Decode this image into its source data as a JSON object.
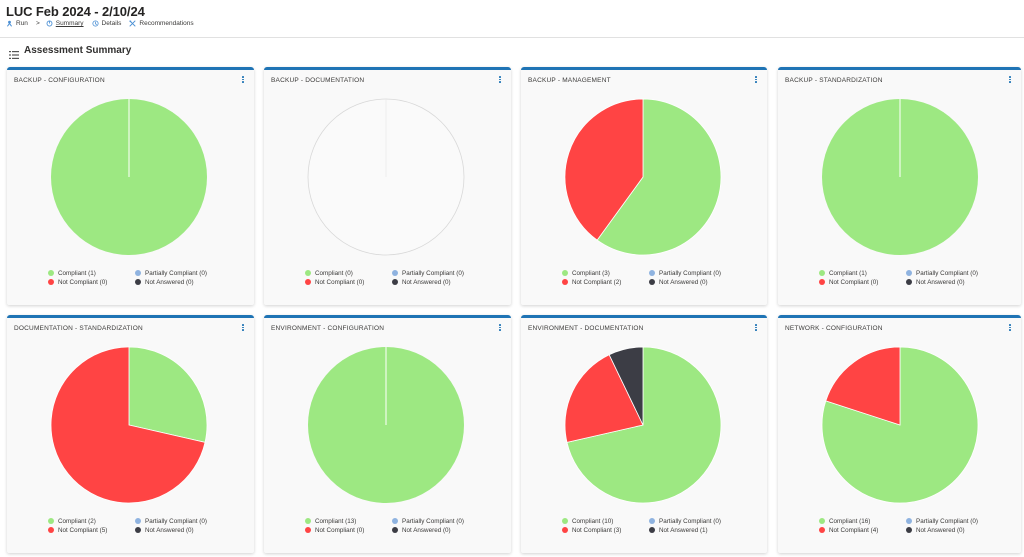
{
  "header": {
    "title": "LUC Feb 2024 - 2/10/24",
    "breadcrumbs": [
      {
        "label": "Run",
        "icon": "run-icon"
      },
      {
        "label": "Summary",
        "icon": "summary-icon",
        "active": true
      },
      {
        "label": "Details",
        "icon": "details-icon"
      },
      {
        "label": "Recommendations",
        "icon": "recommendations-icon"
      }
    ],
    "separator": ">"
  },
  "section": {
    "title": "Assessment Summary",
    "icon": "list-icon"
  },
  "colors": {
    "accent": "#1f74b5",
    "compliant": "#9de882",
    "partially_compliant": "#8fb3e0",
    "not_compliant": "#ff4444",
    "not_answered": "#3c3d45"
  },
  "legend_labels": {
    "compliant": "Compliant",
    "partially": "Partially Compliant",
    "not_compliant": "Not Compliant",
    "not_answered": "Not Answered"
  },
  "cards": [
    {
      "title": "BACKUP - CONFIGURATION",
      "compliant": 1,
      "partially": 0,
      "not_compliant": 0,
      "not_answered": 0,
      "legend": {
        "compliant": "Compliant (1)",
        "partially": "Partially Compliant (0)",
        "not_compliant": "Not Compliant (0)",
        "not_answered": "Not Answered (0)"
      }
    },
    {
      "title": "BACKUP - DOCUMENTATION",
      "compliant": 0,
      "partially": 0,
      "not_compliant": 0,
      "not_answered": 0,
      "legend": {
        "compliant": "Compliant (0)",
        "partially": "Partially Compliant (0)",
        "not_compliant": "Not Compliant (0)",
        "not_answered": "Not Answered (0)"
      }
    },
    {
      "title": "BACKUP - MANAGEMENT",
      "compliant": 3,
      "partially": 0,
      "not_compliant": 2,
      "not_answered": 0,
      "legend": {
        "compliant": "Compliant (3)",
        "partially": "Partially Compliant (0)",
        "not_compliant": "Not Compliant (2)",
        "not_answered": "Not Answered (0)"
      }
    },
    {
      "title": "BACKUP - STANDARDIZATION",
      "compliant": 1,
      "partially": 0,
      "not_compliant": 0,
      "not_answered": 0,
      "legend": {
        "compliant": "Compliant (1)",
        "partially": "Partially Compliant (0)",
        "not_compliant": "Not Compliant (0)",
        "not_answered": "Not Answered (0)"
      }
    },
    {
      "title": "DOCUMENTATION - STANDARDIZATION",
      "compliant": 2,
      "partially": 0,
      "not_compliant": 5,
      "not_answered": 0,
      "legend": {
        "compliant": "Compliant (2)",
        "partially": "Partially Compliant (0)",
        "not_compliant": "Not Compliant (5)",
        "not_answered": "Not Answered (0)"
      }
    },
    {
      "title": "ENVIRONMENT - CONFIGURATION",
      "compliant": 13,
      "partially": 0,
      "not_compliant": 0,
      "not_answered": 0,
      "legend": {
        "compliant": "Compliant (13)",
        "partially": "Partially Compliant (0)",
        "not_compliant": "Not Compliant (0)",
        "not_answered": "Not Answered (0)"
      }
    },
    {
      "title": "ENVIRONMENT - DOCUMENTATION",
      "compliant": 10,
      "partially": 0,
      "not_compliant": 3,
      "not_answered": 1,
      "legend": {
        "compliant": "Compliant (10)",
        "partially": "Partially Compliant (0)",
        "not_compliant": "Not Compliant (3)",
        "not_answered": "Not Answered (1)"
      }
    },
    {
      "title": "NETWORK - CONFIGURATION",
      "compliant": 16,
      "partially": 0,
      "not_compliant": 4,
      "not_answered": 0,
      "legend": {
        "compliant": "Compliant (16)",
        "partially": "Partially Compliant (0)",
        "not_compliant": "Not Compliant (4)",
        "not_answered": "Not Answered (0)"
      }
    }
  ],
  "chart_data": [
    {
      "type": "pie",
      "title": "BACKUP - CONFIGURATION",
      "categories": [
        "Compliant",
        "Partially Compliant",
        "Not Compliant",
        "Not Answered"
      ],
      "values": [
        1,
        0,
        0,
        0
      ]
    },
    {
      "type": "pie",
      "title": "BACKUP - DOCUMENTATION",
      "categories": [
        "Compliant",
        "Partially Compliant",
        "Not Compliant",
        "Not Answered"
      ],
      "values": [
        0,
        0,
        0,
        0
      ]
    },
    {
      "type": "pie",
      "title": "BACKUP - MANAGEMENT",
      "categories": [
        "Compliant",
        "Partially Compliant",
        "Not Compliant",
        "Not Answered"
      ],
      "values": [
        3,
        0,
        2,
        0
      ]
    },
    {
      "type": "pie",
      "title": "BACKUP - STANDARDIZATION",
      "categories": [
        "Compliant",
        "Partially Compliant",
        "Not Compliant",
        "Not Answered"
      ],
      "values": [
        1,
        0,
        0,
        0
      ]
    },
    {
      "type": "pie",
      "title": "DOCUMENTATION - STANDARDIZATION",
      "categories": [
        "Compliant",
        "Partially Compliant",
        "Not Compliant",
        "Not Answered"
      ],
      "values": [
        2,
        0,
        5,
        0
      ]
    },
    {
      "type": "pie",
      "title": "ENVIRONMENT - CONFIGURATION",
      "categories": [
        "Compliant",
        "Partially Compliant",
        "Not Compliant",
        "Not Answered"
      ],
      "values": [
        13,
        0,
        0,
        0
      ]
    },
    {
      "type": "pie",
      "title": "ENVIRONMENT - DOCUMENTATION",
      "categories": [
        "Compliant",
        "Partially Compliant",
        "Not Compliant",
        "Not Answered"
      ],
      "values": [
        10,
        0,
        3,
        1
      ]
    },
    {
      "type": "pie",
      "title": "NETWORK - CONFIGURATION",
      "categories": [
        "Compliant",
        "Partially Compliant",
        "Not Compliant",
        "Not Answered"
      ],
      "values": [
        16,
        0,
        4,
        0
      ]
    }
  ]
}
